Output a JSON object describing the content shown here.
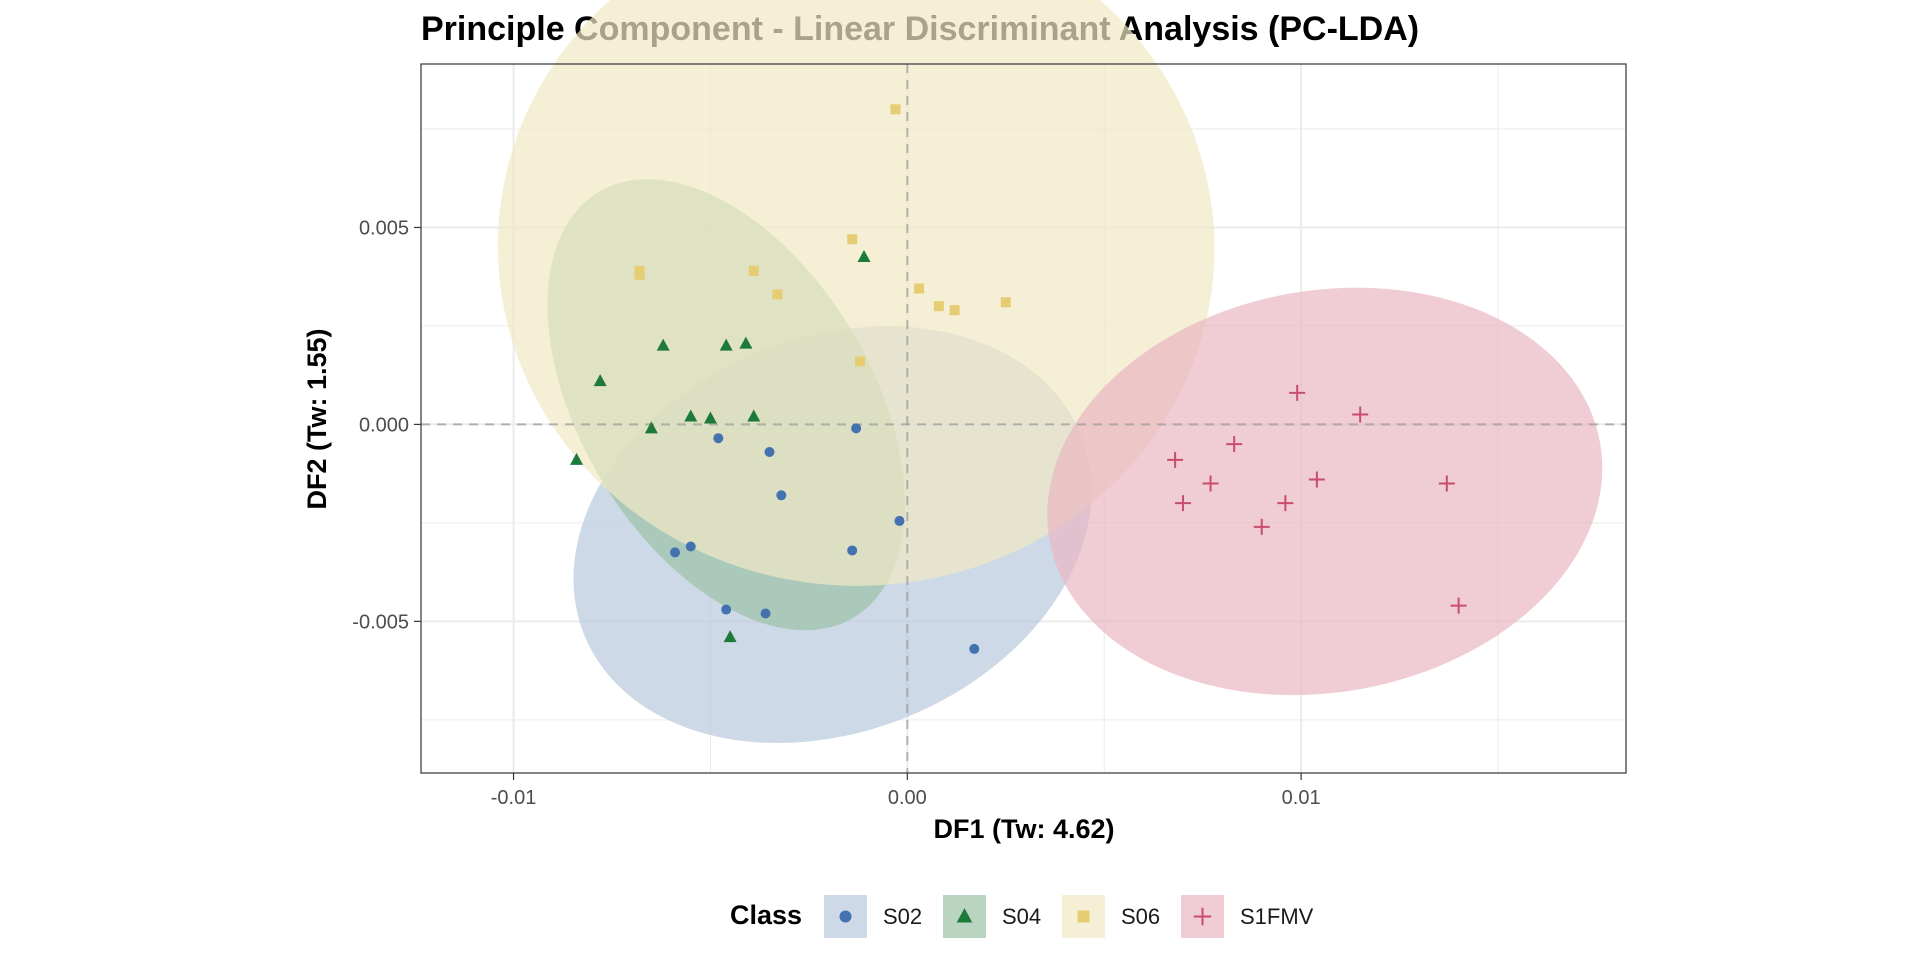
{
  "chart_data": {
    "type": "scatter",
    "title": "Principle Component - Linear Discriminant Analysis (PC-LDA)",
    "xlabel": "DF1 (Tw: 4.62)",
    "ylabel": "DF2 (Tw: 1.55)",
    "xlim": [
      -0.01235,
      0.01825
    ],
    "ylim": [
      -0.00885,
      0.00915
    ],
    "x_ticks": [
      -0.01,
      0.0,
      0.01
    ],
    "x_tick_labels": [
      "-0.01",
      "0.00",
      "0.01"
    ],
    "y_ticks": [
      0.005,
      0.0,
      -0.005
    ],
    "y_tick_labels": [
      "0.005",
      "0.000",
      "-0.005"
    ],
    "grid": true,
    "reference_lines": {
      "x": 0,
      "y": 0,
      "style": "dashed"
    },
    "legend": {
      "title": "Class",
      "position": "bottom"
    },
    "series": [
      {
        "name": "S02",
        "marker": "circle",
        "color": "#4472b0",
        "fill": "#b8c9dc",
        "points": [
          [
            -0.0048,
            -0.00035
          ],
          [
            -0.0035,
            -0.0007
          ],
          [
            -0.0013,
            -0.0001
          ],
          [
            -0.0032,
            -0.0018
          ],
          [
            -0.0002,
            -0.00245
          ],
          [
            -0.0014,
            -0.0032
          ],
          [
            -0.0055,
            -0.0031
          ],
          [
            -0.0059,
            -0.00325
          ],
          [
            -0.0046,
            -0.0047
          ],
          [
            -0.0036,
            -0.0048
          ],
          [
            0.0017,
            -0.0057
          ]
        ],
        "ellipse": {
          "cx": -0.0019,
          "cy": -0.0028,
          "rx": 0.0068,
          "ry": 0.005,
          "angle": 22
        }
      },
      {
        "name": "S04",
        "marker": "triangle",
        "color": "#1d7a3b",
        "fill": "#9bc2a6",
        "points": [
          [
            -0.0011,
            0.00425
          ],
          [
            -0.0062,
            0.002
          ],
          [
            -0.0046,
            0.002
          ],
          [
            -0.0041,
            0.00205
          ],
          [
            -0.0078,
            0.0011
          ],
          [
            -0.0055,
            0.0002
          ],
          [
            -0.005,
            0.00015
          ],
          [
            -0.0039,
            0.0002
          ],
          [
            -0.0065,
            -0.0001
          ],
          [
            -0.0084,
            -0.0009
          ],
          [
            -0.0045,
            -0.0054
          ]
        ],
        "ellipse": {
          "cx": -0.0046,
          "cy": 0.0005,
          "rx": 0.0063,
          "ry": 0.0037,
          "angle": 121
        }
      },
      {
        "name": "S06",
        "marker": "square",
        "color": "#e6cc73",
        "fill": "#f1e8c4",
        "points": [
          [
            -0.0003,
            0.008
          ],
          [
            -0.0014,
            0.0047
          ],
          [
            -0.0068,
            0.0038
          ],
          [
            -0.0068,
            0.0039
          ],
          [
            -0.0039,
            0.0039
          ],
          [
            -0.0033,
            0.0033
          ],
          [
            0.0003,
            0.00345
          ],
          [
            0.0025,
            0.0031
          ],
          [
            0.0008,
            0.003
          ],
          [
            0.0012,
            0.0029
          ],
          [
            -0.0012,
            0.0016
          ]
        ],
        "ellipse": {
          "cx": -0.0013,
          "cy": 0.0045,
          "rx": 0.0091,
          "ry": 0.0086,
          "angle": -2
        }
      },
      {
        "name": "S1FMV",
        "marker": "plus",
        "color": "#c94d6d",
        "fill": "#eab6c2",
        "points": [
          [
            0.0099,
            0.0008
          ],
          [
            0.0115,
            0.00025
          ],
          [
            0.0083,
            -0.0005
          ],
          [
            0.0068,
            -0.0009
          ],
          [
            0.0104,
            -0.0014
          ],
          [
            0.0077,
            -0.0015
          ],
          [
            0.007,
            -0.002
          ],
          [
            0.0096,
            -0.002
          ],
          [
            0.009,
            -0.0026
          ],
          [
            0.0137,
            -0.0015
          ],
          [
            0.014,
            -0.0046
          ]
        ],
        "ellipse": {
          "cx": 0.0106,
          "cy": -0.0017,
          "rx": 0.0071,
          "ry": 0.0051,
          "angle": 10
        }
      }
    ]
  }
}
